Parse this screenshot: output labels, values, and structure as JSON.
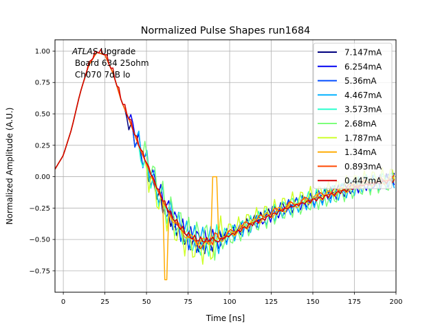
{
  "chart_data": {
    "type": "line",
    "title": "Normalized Pulse Shapes run1684",
    "xlabel": "Time [ns]",
    "ylabel": "Normalized Amplitude (A.U.)",
    "xlim": [
      -5,
      200
    ],
    "ylim": [
      -0.92,
      1.09
    ],
    "xticks": [
      0,
      25,
      50,
      75,
      100,
      125,
      150,
      175,
      200
    ],
    "yticks": [
      1.0,
      0.75,
      0.5,
      0.25,
      0.0,
      -0.25,
      -0.5,
      -0.75
    ],
    "xtick_labels": [
      "0",
      "25",
      "50",
      "75",
      "100",
      "125",
      "150",
      "175",
      "200"
    ],
    "ytick_labels": [
      "1.00",
      "0.75",
      "0.50",
      "0.25",
      "0.00",
      "−0.25",
      "−0.50",
      "−0.75"
    ],
    "grid": true,
    "legend_position": "top-right",
    "annotation": {
      "line1_italic": "ATLAS",
      "line1_rest": " Upgrade",
      "line2": " Board 634 25ohm",
      "line3": " Ch070 7dB lo"
    },
    "base_curve": {
      "x": [
        -5,
        0,
        5,
        10,
        15,
        20,
        25,
        30,
        35,
        40,
        45,
        50,
        55,
        60,
        65,
        70,
        75,
        80,
        85,
        90,
        95,
        100,
        105,
        110,
        115,
        120,
        125,
        130,
        135,
        140,
        145,
        150,
        155,
        160,
        165,
        170,
        175,
        180,
        185,
        190,
        195,
        200
      ],
      "y": [
        0.06,
        0.17,
        0.38,
        0.66,
        0.88,
        0.99,
        0.97,
        0.82,
        0.6,
        0.44,
        0.26,
        0.1,
        -0.06,
        -0.2,
        -0.32,
        -0.41,
        -0.48,
        -0.51,
        -0.52,
        -0.51,
        -0.49,
        -0.46,
        -0.43,
        -0.39,
        -0.36,
        -0.33,
        -0.3,
        -0.27,
        -0.24,
        -0.22,
        -0.2,
        -0.18,
        -0.16,
        -0.14,
        -0.12,
        -0.1,
        -0.08,
        -0.06,
        -0.05,
        -0.04,
        -0.03,
        -0.02
      ]
    },
    "series": [
      {
        "name": "7.147mA",
        "color": "#00007f",
        "ringing_start": 38,
        "ringing_amp": 0.1,
        "period": 4.2
      },
      {
        "name": "6.254mA",
        "color": "#0000f1",
        "ringing_start": 40,
        "ringing_amp": 0.1,
        "period": 4.4
      },
      {
        "name": "5.36mA",
        "color": "#004cff",
        "ringing_start": 42,
        "ringing_amp": 0.1,
        "period": 4.6
      },
      {
        "name": "4.467mA",
        "color": "#00b0ff",
        "ringing_start": 44,
        "ringing_amp": 0.12,
        "period": 4.8
      },
      {
        "name": "3.573mA",
        "color": "#29ffce",
        "ringing_start": 46,
        "ringing_amp": 0.12,
        "period": 5.0
      },
      {
        "name": "2.68mA",
        "color": "#7dff7a",
        "ringing_start": 48,
        "ringing_amp": 0.16,
        "period": 5.2
      },
      {
        "name": "1.787mA",
        "color": "#ceff29",
        "ringing_start": 50,
        "ringing_amp": 0.18,
        "period": 5.4
      },
      {
        "name": "1.34mA",
        "color": "#ffab00",
        "ringing_start": 60,
        "ringing_amp": 0.3,
        "period": 30
      },
      {
        "name": "0.893mA",
        "color": "#ff4800",
        "ringing_start": 80,
        "ringing_amp": 0.06,
        "period": 9
      },
      {
        "name": "0.447mA",
        "color": "#d60000",
        "ringing_start": 15,
        "ringing_amp": 0.04,
        "period": 3.5
      }
    ]
  }
}
